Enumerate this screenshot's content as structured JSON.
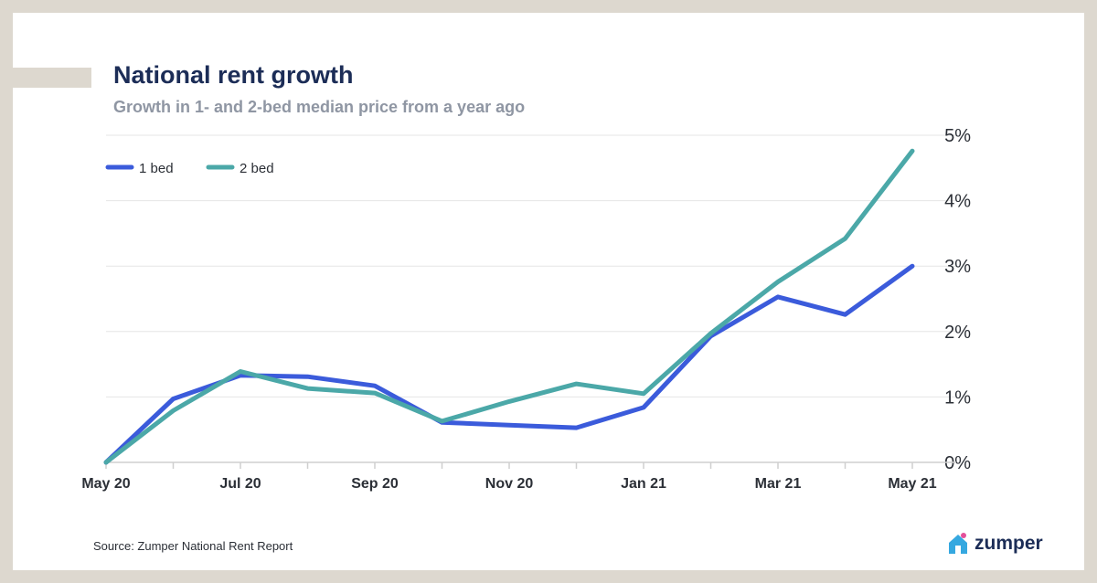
{
  "header": {
    "title": "National rent growth",
    "subtitle": "Growth in 1- and 2-bed median price from a year ago"
  },
  "footer": {
    "source": "Source: Zumper National Rent Report",
    "brand": "zumper"
  },
  "chart_data": {
    "type": "line",
    "title": "National rent growth",
    "subtitle": "Growth in 1- and 2-bed median price from a year ago",
    "xlabel": "",
    "ylabel": "",
    "x": [
      "May 20",
      "Jun 20",
      "Jul 20",
      "Aug 20",
      "Sep 20",
      "Oct 20",
      "Nov 20",
      "Dec 20",
      "Jan 21",
      "Feb 21",
      "Mar 21",
      "Apr 21",
      "May 21"
    ],
    "x_tick_labels": [
      "May 20",
      "Jul 20",
      "Sep 20",
      "Nov 20",
      "Jan 21",
      "Mar 21",
      "May 21"
    ],
    "y_tick_labels": [
      "0%",
      "1%",
      "2%",
      "3%",
      "4%",
      "5%"
    ],
    "ylim": [
      0,
      5
    ],
    "y_axis_position": "right",
    "grid": true,
    "legend_position": "top-left",
    "series": [
      {
        "name": "1 bed",
        "color": "#3b5bdb",
        "values": [
          0.0,
          0.97,
          1.33,
          1.31,
          1.17,
          0.61,
          0.57,
          0.53,
          0.84,
          1.93,
          2.53,
          2.26,
          3.0
        ]
      },
      {
        "name": "2 bed",
        "color": "#4ba8a8",
        "values": [
          0.0,
          0.79,
          1.39,
          1.13,
          1.06,
          0.63,
          0.93,
          1.2,
          1.05,
          1.97,
          2.76,
          3.42,
          4.76
        ]
      }
    ]
  }
}
